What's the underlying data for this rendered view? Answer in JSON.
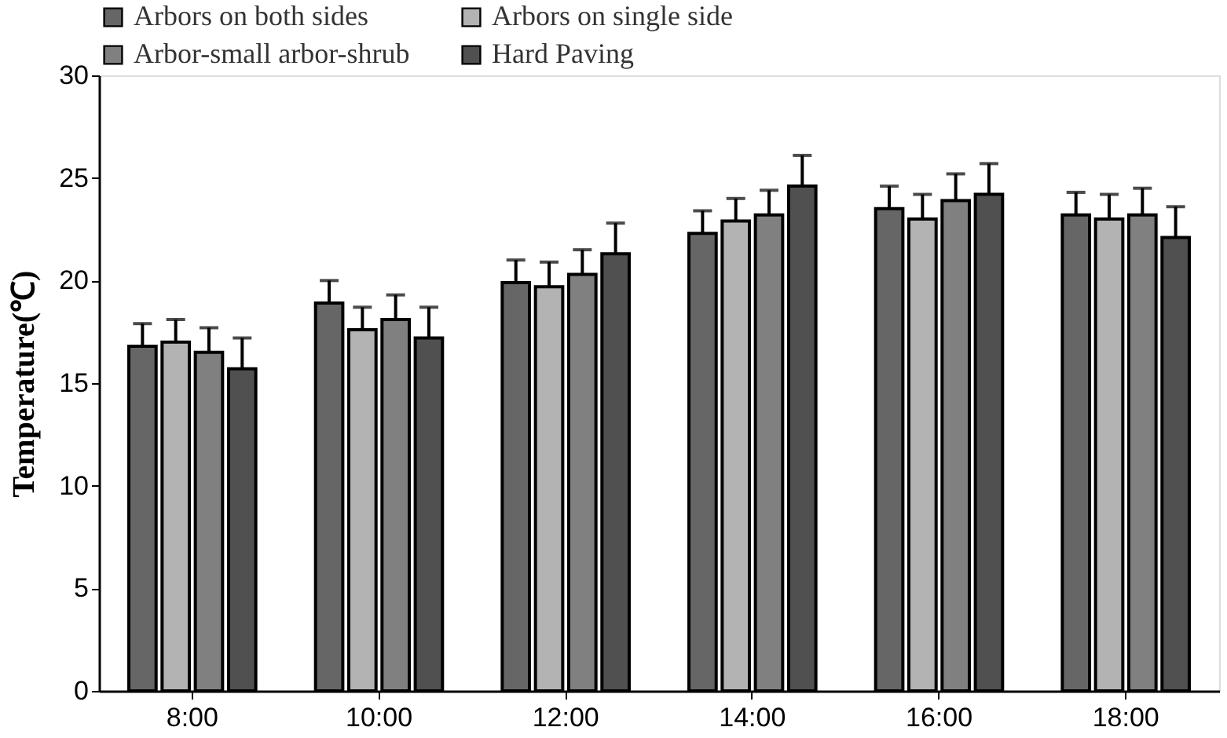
{
  "chart_data": {
    "type": "bar",
    "ylabel": "Temperature(℃)",
    "categories": [
      "8:00",
      "10:00",
      "12:00",
      "14:00",
      "16:00",
      "18:00"
    ],
    "series": [
      {
        "name": "Arbors on both sides",
        "color": "#666666",
        "values": [
          16.8,
          18.9,
          19.9,
          22.3,
          23.5,
          23.2
        ],
        "errors": [
          1.1,
          1.1,
          1.1,
          1.1,
          1.1,
          1.1
        ]
      },
      {
        "name": "Arbors on single side",
        "color": "#b3b3b3",
        "values": [
          17.0,
          17.6,
          19.7,
          22.9,
          23.0,
          23.0
        ],
        "errors": [
          1.1,
          1.1,
          1.2,
          1.1,
          1.2,
          1.2
        ]
      },
      {
        "name": "Arbor-small arbor-shrub",
        "color": "#808080",
        "values": [
          16.5,
          18.1,
          20.3,
          23.2,
          23.9,
          23.2
        ],
        "errors": [
          1.2,
          1.2,
          1.2,
          1.2,
          1.3,
          1.3
        ]
      },
      {
        "name": "Hard Paving",
        "color": "#505050",
        "values": [
          15.7,
          17.2,
          21.3,
          24.6,
          24.2,
          22.1
        ],
        "errors": [
          1.5,
          1.5,
          1.5,
          1.5,
          1.5,
          1.5
        ]
      }
    ],
    "ylim": [
      0,
      30
    ],
    "yticks": [
      0,
      5,
      10,
      15,
      20,
      25,
      30
    ],
    "grid": false,
    "legend": "top"
  }
}
